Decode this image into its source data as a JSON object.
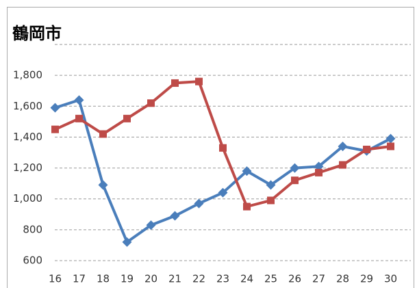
{
  "chart_data": {
    "type": "line",
    "title": "鶴岡市",
    "categories": [
      "16",
      "17",
      "18",
      "19",
      "20",
      "21",
      "22",
      "23",
      "24",
      "25",
      "26",
      "27",
      "28",
      "29",
      "30"
    ],
    "series": [
      {
        "color": "#4a7ebb",
        "marker": "diamond",
        "values": [
          1590,
          1640,
          1090,
          720,
          830,
          890,
          970,
          1040,
          1180,
          1090,
          1200,
          1210,
          1340,
          1310,
          1390
        ]
      },
      {
        "color": "#be4b48",
        "marker": "square",
        "values": [
          1450,
          1520,
          1420,
          1520,
          1620,
          1750,
          1760,
          1330,
          950,
          990,
          1120,
          1170,
          1220,
          1320,
          1340
        ]
      }
    ],
    "ylim": [
      600,
      2000
    ],
    "yticks": [
      600,
      800,
      {
        "value": 1000,
        "label": "1,000"
      },
      {
        "value": 1200,
        "label": "1,200"
      },
      {
        "value": 1400,
        "label": "1,400"
      },
      {
        "value": 1600,
        "label": "1,600"
      },
      {
        "value": 1800,
        "label": "1,800"
      }
    ],
    "grid": true
  }
}
